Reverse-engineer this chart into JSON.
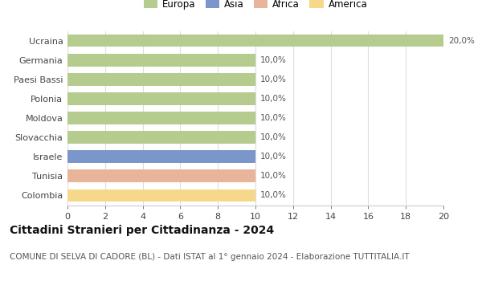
{
  "title": "Cittadini Stranieri per Cittadinanza - 2024",
  "subtitle": "COMUNE DI SELVA DI CADORE (BL) - Dati ISTAT al 1° gennaio 2024 - Elaborazione TUTTITALIA.IT",
  "categories": [
    "Ucraina",
    "Germania",
    "Paesi Bassi",
    "Polonia",
    "Moldova",
    "Slovacchia",
    "Israele",
    "Tunisia",
    "Colombia"
  ],
  "values": [
    20,
    10,
    10,
    10,
    10,
    10,
    10,
    10,
    10
  ],
  "labels": [
    "20,0%",
    "10,0%",
    "10,0%",
    "10,0%",
    "10,0%",
    "10,0%",
    "10,0%",
    "10,0%",
    "10,0%"
  ],
  "colors": [
    "#b5cc8e",
    "#b5cc8e",
    "#b5cc8e",
    "#b5cc8e",
    "#b5cc8e",
    "#b5cc8e",
    "#7b96c8",
    "#e8b49a",
    "#f5d88a"
  ],
  "legend": [
    {
      "label": "Europa",
      "color": "#b5cc8e"
    },
    {
      "label": "Asia",
      "color": "#7b96c8"
    },
    {
      "label": "Africa",
      "color": "#e8b49a"
    },
    {
      "label": "America",
      "color": "#f5d88a"
    }
  ],
  "xlim": [
    0,
    20
  ],
  "xticks": [
    0,
    2,
    4,
    6,
    8,
    10,
    12,
    14,
    16,
    18,
    20
  ],
  "background_color": "#ffffff",
  "plot_bg_color": "#ffffff",
  "grid_color": "#dddddd",
  "bar_height": 0.65,
  "title_fontsize": 10,
  "subtitle_fontsize": 7.5,
  "label_fontsize": 7.5,
  "tick_fontsize": 8,
  "legend_fontsize": 8.5
}
